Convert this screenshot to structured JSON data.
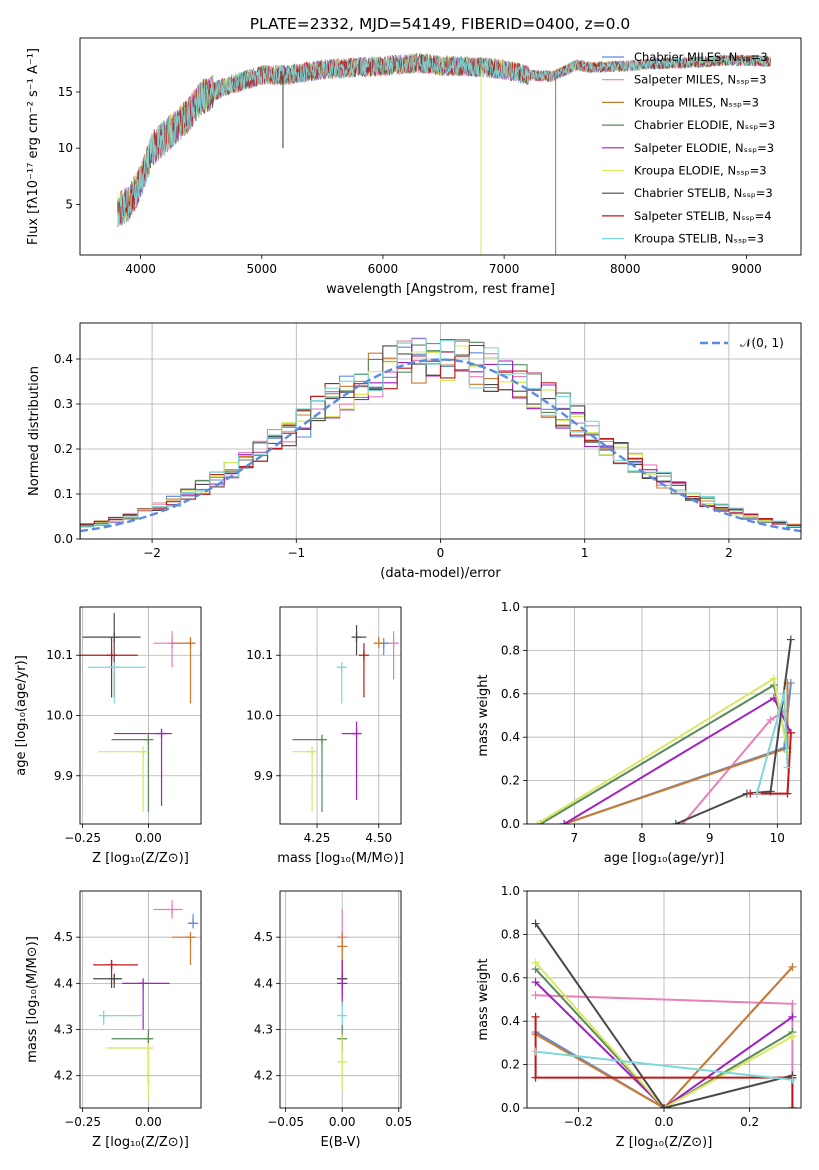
{
  "figure_title": "PLATE=2332, MJD=54149, FIBERID=0400, z=0.0",
  "colors": {
    "Chabrier MILES": "#5b8be0",
    "Salpeter MILES": "#e87fb8",
    "Kroupa MILES": "#cc7a2e",
    "Chabrier ELODIE": "#5a8a5a",
    "Salpeter ELODIE": "#a020c0",
    "Kroupa ELODIE": "#d8e860",
    "Chabrier STELIB": "#4a4a4a",
    "Salpeter STELIB": "#c01818",
    "Kroupa STELIB": "#7ed8d8"
  },
  "chart_data": [
    {
      "id": "spectrum",
      "type": "line",
      "title": "PLATE=2332, MJD=54149, FIBERID=0400, z=0.0",
      "xlabel": "wavelength [Angstrom, rest frame]",
      "ylabel": "Flux [fλ10⁻¹⁷ erg cm⁻² s⁻¹ A⁻¹]",
      "xlim": [
        3500,
        9450
      ],
      "ylim": [
        0.5,
        19.8
      ],
      "xticks": [
        4000,
        5000,
        6000,
        7000,
        8000,
        9000
      ],
      "yticks": [
        5,
        10,
        15
      ],
      "grid": false,
      "legend_position": "top-right",
      "continuum_x": [
        3800,
        3900,
        4000,
        4100,
        4200,
        4300,
        4400,
        4500,
        4700,
        5000,
        5200,
        5500,
        5800,
        6000,
        6300,
        6500,
        6700,
        6800,
        7000,
        7200,
        7400,
        7600,
        7700,
        8000,
        8200,
        8500,
        8800,
        9000,
        9200
      ],
      "continuum_y": [
        4.5,
        5.0,
        7.0,
        10.0,
        11.0,
        12.0,
        13.0,
        14.5,
        15.5,
        16.5,
        16.5,
        17.0,
        17.2,
        17.3,
        17.6,
        17.3,
        17.3,
        17.2,
        17.0,
        16.5,
        16.4,
        17.4,
        17.2,
        17.3,
        17.5,
        17.6,
        17.8,
        17.8,
        17.7
      ],
      "dips": [
        {
          "wavelength": 6810,
          "to": 0.5,
          "series": "Kroupa ELODIE"
        },
        {
          "wavelength": 7425,
          "to": 0.5,
          "series": "Kroupa MILES"
        },
        {
          "wavelength": 5175,
          "to": 10.0,
          "series": "Chabrier STELIB"
        }
      ],
      "series": [
        {
          "name": "Chabrier MILES, Nₛₛₚ=3"
        },
        {
          "name": "Salpeter MILES, Nₛₛₚ=3"
        },
        {
          "name": "Kroupa MILES, Nₛₛₚ=3"
        },
        {
          "name": "Chabrier ELODIE, Nₛₛₚ=3"
        },
        {
          "name": "Salpeter ELODIE, Nₛₛₚ=3"
        },
        {
          "name": "Kroupa ELODIE, Nₛₛₚ=3"
        },
        {
          "name": "Chabrier STELIB, Nₛₛₚ=3"
        },
        {
          "name": "Salpeter STELIB, Nₛₛₚ=4"
        },
        {
          "name": "Kroupa STELIB, Nₛₛₚ=3"
        }
      ]
    },
    {
      "id": "residuals",
      "type": "bar",
      "xlabel": "(data-model)/error",
      "ylabel": "Normed distribution",
      "xlim": [
        -2.5,
        2.5
      ],
      "ylim": [
        0,
        0.48
      ],
      "xticks": [
        -2,
        -1,
        0,
        1,
        2
      ],
      "yticks": [
        0.0,
        0.1,
        0.2,
        0.3,
        0.4
      ],
      "grid": true,
      "legend_position": "top-right",
      "legend": "𝒩(0, 1)",
      "normal": {
        "mean": 0,
        "sigma": 1
      },
      "bin_width": 0.1,
      "series_order": [
        "Chabrier MILES",
        "Salpeter MILES",
        "Kroupa MILES",
        "Chabrier ELODIE",
        "Salpeter ELODIE",
        "Kroupa ELODIE",
        "Chabrier STELIB",
        "Salpeter STELIB",
        "Kroupa STELIB"
      ]
    },
    {
      "id": "age_vs_Z",
      "type": "scatter",
      "xlabel": "Z [log₁₀(Z/Z⊙)]",
      "ylabel": "age  [log₁₀(age/yr)]",
      "xlim": [
        -0.26,
        0.2
      ],
      "ylim": [
        9.82,
        10.18
      ],
      "xticks": [
        -0.25,
        0.0
      ],
      "yticks": [
        9.9,
        10.0,
        10.1
      ],
      "grid": true,
      "points": [
        {
          "series": "Chabrier STELIB",
          "x": -0.13,
          "xerr": [
            0.12,
            0.1
          ],
          "y": 10.13,
          "yerr": [
            0.1,
            0.04
          ]
        },
        {
          "series": "Salpeter MILES",
          "x": 0.09,
          "xerr": [
            0.07,
            0.05
          ],
          "y": 10.12,
          "yerr": [
            0.04,
            0.02
          ]
        },
        {
          "series": "Kroupa MILES",
          "x": 0.16,
          "xerr": [
            0.07,
            0.0
          ],
          "y": 10.12,
          "yerr": [
            0.1,
            0.01
          ]
        },
        {
          "series": "Salpeter STELIB",
          "x": -0.14,
          "xerr": [
            0.12,
            0.1
          ],
          "y": 10.1,
          "yerr": [
            0.07,
            0.03
          ]
        },
        {
          "series": "Kroupa STELIB",
          "x": -0.13,
          "xerr": [
            0.1,
            0.12
          ],
          "y": 10.08,
          "yerr": [
            0.06,
            0.0
          ]
        },
        {
          "series": "Salpeter ELODIE",
          "x": 0.05,
          "xerr": [
            0.18,
            0.04
          ],
          "y": 9.97,
          "yerr": [
            0.12,
            0.0
          ]
        },
        {
          "series": "Chabrier ELODIE",
          "x": 0.0,
          "xerr": [
            0.14,
            0.0
          ],
          "y": 9.96,
          "yerr": [
            0.12,
            0.0
          ]
        },
        {
          "series": "Kroupa ELODIE",
          "x": -0.02,
          "xerr": [
            0.17,
            0.02
          ],
          "y": 9.94,
          "yerr": [
            0.1,
            0.0
          ]
        }
      ]
    },
    {
      "id": "age_vs_mass",
      "type": "scatter",
      "xlabel": "mass [log₁₀(M/M⊙)]",
      "xlim": [
        4.1,
        4.59
      ],
      "ylim": [
        9.82,
        10.18
      ],
      "xticks": [
        4.25,
        4.5
      ],
      "yticks": [
        9.9,
        10.0,
        10.1
      ],
      "grid": true,
      "points": [
        {
          "series": "Chabrier STELIB",
          "x": 4.41,
          "xerr": [
            0.0,
            0.04
          ],
          "y": 10.13,
          "yerr": [
            0.03,
            0.02
          ]
        },
        {
          "series": "Chabrier MILES",
          "x": 4.52,
          "xerr": [
            0.0,
            0.02
          ],
          "y": 10.12,
          "yerr": [
            0.02,
            0.0
          ]
        },
        {
          "series": "Salpeter MILES",
          "x": 4.56,
          "xerr": [
            0.02,
            0.0
          ],
          "y": 10.12,
          "yerr": [
            0.06,
            0.02
          ]
        },
        {
          "series": "Kroupa MILES",
          "x": 4.5,
          "xerr": [
            0.0,
            0.0
          ],
          "y": 10.12,
          "yerr": [
            0.0,
            0.01
          ]
        },
        {
          "series": "Salpeter STELIB",
          "x": 4.44,
          "xerr": [
            0.0,
            0.0
          ],
          "y": 10.1,
          "yerr": [
            0.07,
            0.02
          ]
        },
        {
          "series": "Kroupa STELIB",
          "x": 4.35,
          "xerr": [
            0.02,
            0.0
          ],
          "y": 10.08,
          "yerr": [
            0.06,
            0.0
          ]
        },
        {
          "series": "Salpeter ELODIE",
          "x": 4.41,
          "xerr": [
            0.06,
            0.0
          ],
          "y": 9.97,
          "yerr": [
            0.11,
            0.02
          ]
        },
        {
          "series": "Chabrier ELODIE",
          "x": 4.27,
          "xerr": [
            0.12,
            0.0
          ],
          "y": 9.96,
          "yerr": [
            0.12,
            0.0
          ]
        },
        {
          "series": "Kroupa ELODIE",
          "x": 4.23,
          "xerr": [
            0.08,
            0.0
          ],
          "y": 9.94,
          "yerr": [
            0.1,
            0.0
          ]
        }
      ]
    },
    {
      "id": "massweight_vs_age",
      "type": "line",
      "xlabel": "age  [log₁₀(age/yr)]",
      "ylabel": "mass weight",
      "xlim": [
        6.3,
        10.35
      ],
      "ylim": [
        0,
        1.0
      ],
      "xticks": [
        7,
        8,
        9,
        10
      ],
      "yticks": [
        0.0,
        0.2,
        0.4,
        0.6,
        0.8,
        1.0
      ],
      "grid": true,
      "series": [
        {
          "series": "Chabrier MILES",
          "x": [
            6.85,
            10.1,
            10.2
          ],
          "y": [
            0.0,
            0.35,
            0.65
          ]
        },
        {
          "series": "Salpeter MILES",
          "x": [
            8.6,
            9.9,
            10.1
          ],
          "y": [
            0.0,
            0.48,
            0.52
          ]
        },
        {
          "series": "Kroupa MILES",
          "x": [
            6.85,
            10.15,
            10.15
          ],
          "y": [
            0.0,
            0.35,
            0.65
          ]
        },
        {
          "series": "Chabrier ELODIE",
          "x": [
            6.5,
            9.95,
            10.15
          ],
          "y": [
            0.0,
            0.64,
            0.35
          ]
        },
        {
          "series": "Salpeter ELODIE",
          "x": [
            6.85,
            9.95,
            10.2
          ],
          "y": [
            0.0,
            0.58,
            0.42
          ]
        },
        {
          "series": "Kroupa ELODIE",
          "x": [
            6.45,
            9.95,
            10.15
          ],
          "y": [
            0.0,
            0.67,
            0.33
          ]
        },
        {
          "series": "Chabrier STELIB",
          "x": [
            8.5,
            9.55,
            9.9,
            10.2
          ],
          "y": [
            0.0,
            0.14,
            0.15,
            0.85
          ]
        },
        {
          "series": "Salpeter STELIB",
          "x": [
            9.6,
            10.15,
            10.2
          ],
          "y": [
            0.14,
            0.14,
            0.42
          ]
        },
        {
          "series": "Kroupa STELIB",
          "x": [
            9.7,
            10.1,
            10.15
          ],
          "y": [
            0.14,
            0.6,
            0.26
          ]
        }
      ]
    },
    {
      "id": "mass_vs_Z",
      "type": "scatter",
      "xlabel": "Z [log₁₀(Z/Z⊙)]",
      "ylabel": "mass [log₁₀(M/M⊙)]",
      "xlim": [
        -0.26,
        0.2
      ],
      "ylim": [
        4.13,
        4.6
      ],
      "xticks": [
        -0.25,
        0.0
      ],
      "yticks": [
        4.2,
        4.3,
        4.4,
        4.5
      ],
      "grid": true,
      "points": [
        {
          "series": "Salpeter MILES",
          "x": 0.09,
          "xerr": [
            0.07,
            0.04
          ],
          "y": 4.56,
          "yerr": [
            0.02,
            0.02
          ]
        },
        {
          "series": "Chabrier MILES",
          "x": 0.17,
          "xerr": [
            0.02,
            0.0
          ],
          "y": 4.53,
          "yerr": [
            0.0,
            0.02
          ]
        },
        {
          "series": "Kroupa MILES",
          "x": 0.16,
          "xerr": [
            0.07,
            0.0
          ],
          "y": 4.5,
          "yerr": [
            0.06,
            0.0
          ]
        },
        {
          "series": "Salpeter STELIB",
          "x": -0.14,
          "xerr": [
            0.07,
            0.1
          ],
          "y": 4.44,
          "yerr": [
            0.05,
            0.01
          ]
        },
        {
          "series": "Chabrier STELIB",
          "x": -0.13,
          "xerr": [
            0.08,
            0.03
          ],
          "y": 4.41,
          "yerr": [
            0.02,
            0.01
          ]
        },
        {
          "series": "Salpeter ELODIE",
          "x": -0.02,
          "xerr": [
            0.08,
            0.1
          ],
          "y": 4.4,
          "yerr": [
            0.1,
            0.0
          ]
        },
        {
          "series": "Kroupa STELIB",
          "x": -0.17,
          "xerr": [
            0.0,
            0.15
          ],
          "y": 4.33,
          "yerr": [
            0.02,
            0.0
          ]
        },
        {
          "series": "Chabrier ELODIE",
          "x": 0.0,
          "xerr": [
            0.14,
            0.01
          ],
          "y": 4.28,
          "yerr": [
            0.1,
            0.02
          ]
        },
        {
          "series": "Kroupa ELODIE",
          "x": 0.0,
          "xerr": [
            0.16,
            0.0
          ],
          "y": 4.26,
          "yerr": [
            0.11,
            0.0
          ]
        }
      ]
    },
    {
      "id": "mass_vs_ebv",
      "type": "scatter",
      "xlabel": "E(B-V)",
      "xlim": [
        -0.055,
        0.052
      ],
      "ylim": [
        4.13,
        4.6
      ],
      "xticks": [
        -0.05,
        0.0,
        0.05
      ],
      "yticks": [
        4.2,
        4.3,
        4.4,
        4.5
      ],
      "grid": true,
      "points": [
        {
          "series": "Salpeter MILES",
          "x": 0.0,
          "y": 4.5,
          "yerr": [
            0.06,
            0.06
          ]
        },
        {
          "series": "Kroupa MILES",
          "x": 0.0,
          "y": 4.48,
          "yerr": [
            0.03,
            0.03
          ]
        },
        {
          "series": "Salpeter STELIB",
          "x": 0.0,
          "y": 4.41,
          "yerr": [
            0.04,
            0.04
          ]
        },
        {
          "series": "Chabrier STELIB",
          "x": 0.0,
          "y": 4.41,
          "yerr": [
            0.02,
            0.02
          ]
        },
        {
          "series": "Salpeter ELODIE",
          "x": 0.0,
          "y": 4.4,
          "yerr": [
            0.05,
            0.05
          ]
        },
        {
          "series": "Kroupa STELIB",
          "x": 0.0,
          "y": 4.33,
          "yerr": [
            0.03,
            0.03
          ]
        },
        {
          "series": "Chabrier ELODIE",
          "x": 0.0,
          "y": 4.28,
          "yerr": [
            0.03,
            0.03
          ]
        },
        {
          "series": "Kroupa ELODIE",
          "x": 0.0,
          "y": 4.23,
          "yerr": [
            0.06,
            0.06
          ]
        }
      ]
    },
    {
      "id": "massweight_vs_Z",
      "type": "line",
      "xlabel": "Z [log₁₀(Z/Z⊙)]",
      "ylabel": "mass weight",
      "xlim": [
        -0.32,
        0.32
      ],
      "ylim": [
        0,
        1.0
      ],
      "xticks": [
        -0.2,
        0.0,
        0.2
      ],
      "yticks": [
        0.0,
        0.2,
        0.4,
        0.6,
        0.8,
        1.0
      ],
      "grid": true,
      "series": [
        {
          "series": "Chabrier MILES",
          "x": [
            -0.3,
            0.0,
            0.3
          ],
          "y": [
            0.35,
            0.0,
            0.65
          ]
        },
        {
          "series": "Salpeter MILES",
          "x": [
            -0.3,
            0.3,
            0.3
          ],
          "y": [
            0.52,
            0.48,
            0.0
          ]
        },
        {
          "series": "Kroupa MILES",
          "x": [
            -0.3,
            0.0,
            0.3
          ],
          "y": [
            0.34,
            0.0,
            0.65
          ]
        },
        {
          "series": "Chabrier ELODIE",
          "x": [
            -0.3,
            0.0,
            0.3
          ],
          "y": [
            0.64,
            0.0,
            0.35
          ]
        },
        {
          "series": "Salpeter ELODIE",
          "x": [
            -0.3,
            0.0,
            0.3
          ],
          "y": [
            0.58,
            0.0,
            0.42
          ]
        },
        {
          "series": "Kroupa ELODIE",
          "x": [
            -0.3,
            0.0,
            0.3
          ],
          "y": [
            0.67,
            0.0,
            0.33
          ]
        },
        {
          "series": "Chabrier STELIB",
          "x": [
            -0.3,
            0.0,
            0.3
          ],
          "y": [
            0.85,
            0.0,
            0.15
          ]
        },
        {
          "series": "Salpeter STELIB",
          "x": [
            -0.3,
            -0.3,
            0.3,
            0.3
          ],
          "y": [
            0.42,
            0.14,
            0.14,
            0.0
          ]
        },
        {
          "series": "Kroupa STELIB",
          "x": [
            -0.3,
            0.3
          ],
          "y": [
            0.26,
            0.13
          ]
        }
      ]
    }
  ]
}
